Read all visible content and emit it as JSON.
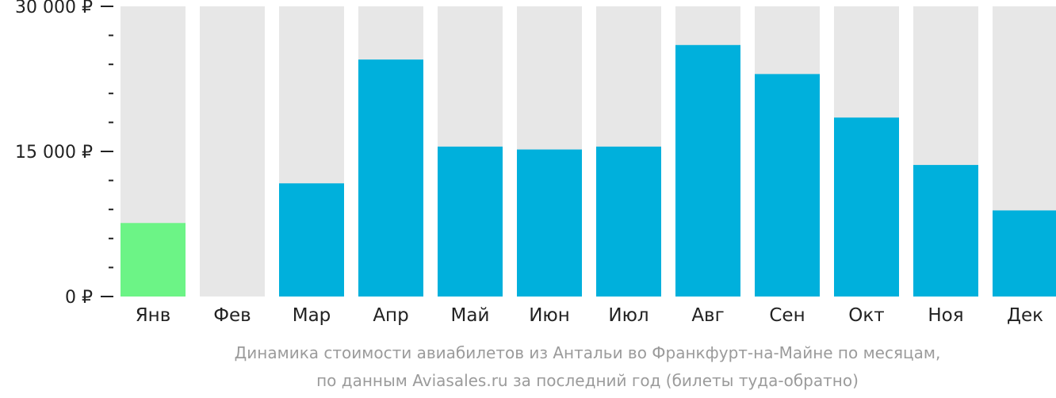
{
  "chart_data": {
    "type": "bar",
    "categories": [
      "Янв",
      "Фев",
      "Мар",
      "Апр",
      "Май",
      "Июн",
      "Июл",
      "Авг",
      "Сен",
      "Окт",
      "Ноя",
      "Дек"
    ],
    "values": [
      7600,
      null,
      11700,
      24500,
      15500,
      15200,
      15500,
      26000,
      23000,
      18500,
      13600,
      8900
    ],
    "ylim": [
      0,
      30000
    ],
    "yticks": [
      {
        "value": 0,
        "label": "0 ₽"
      },
      {
        "value": 15000,
        "label": "15 000 ₽"
      },
      {
        "value": 30000,
        "label": "30 000 ₽"
      }
    ],
    "minor_tick_step": 3000,
    "colors": {
      "bar": "#00b0dc",
      "cheapest_bar": "#6cf486",
      "bar_background": "#e7e7e7"
    },
    "highlight_index": 0,
    "caption_lines": [
      "Динамика стоимости авиабилетов из Антальи во Франкфурт-на-Майне по месяцам,",
      "по данным Aviasales.ru за последний год (билеты туда-обратно)"
    ]
  }
}
